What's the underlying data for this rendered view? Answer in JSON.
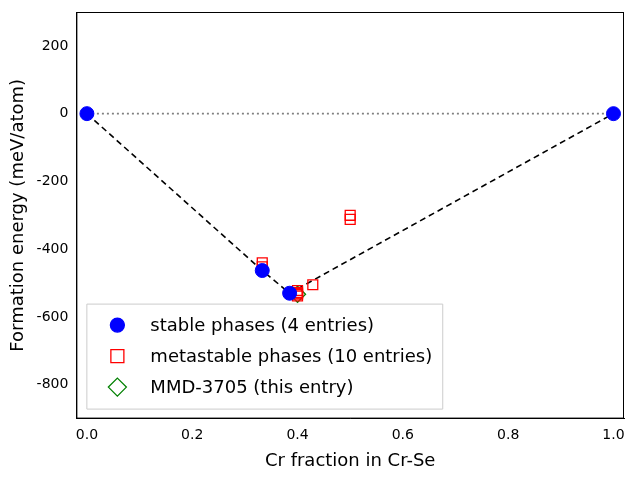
{
  "chart_data": {
    "type": "scatter",
    "x_label": "Cr fraction in Cr-Se",
    "y_label": "Formation energy (meV/atom)",
    "xlim": [
      -0.02,
      1.02
    ],
    "xticks": [
      {
        "value": 0,
        "label": "0.0"
      },
      {
        "value": 0.2,
        "label": "0.2"
      },
      {
        "value": 0.4,
        "label": "0.4"
      },
      {
        "value": 0.6,
        "label": "0.6"
      },
      {
        "value": 0.8,
        "label": "0.8"
      },
      {
        "value": 1,
        "label": "1.0"
      }
    ],
    "ylim": [
      -900,
      300
    ],
    "yticks": [
      -800,
      -600,
      -400,
      -200,
      0,
      200
    ],
    "grid": false,
    "legend": "lower left",
    "series": [
      {
        "name": "stable phases (4 entries)",
        "type": "scatter",
        "color": "#0000ff",
        "marker": "circle",
        "x": [
          0,
          0.333,
          0.385,
          1
        ],
        "values": [
          0,
          -463,
          -530,
          0
        ]
      },
      {
        "name": "metastable phases (10 entries)",
        "type": "scatter",
        "color": "#ff0000",
        "marker": "open_square",
        "x": [
          0.333,
          0.333,
          0.4,
          0.4,
          0.4,
          0.4,
          0.4,
          0.429,
          0.5,
          0.5
        ],
        "values": [
          -440,
          -452,
          -522,
          -528,
          -530,
          -533,
          -538,
          -505,
          -300,
          -312
        ]
      },
      {
        "name": "MMD-3705 (this entry)",
        "type": "scatter",
        "color": "#008000",
        "marker": "open_diamond",
        "x": [
          0.4
        ],
        "values": [
          -533
        ]
      },
      {
        "type": "line",
        "color": "#000000",
        "line_style": "dashed",
        "x": [
          0,
          0.333,
          0.385,
          1
        ],
        "values": [
          0,
          -463,
          -530,
          0
        ]
      },
      {
        "type": "line",
        "color": "#808080",
        "line_style": "dotted",
        "x": [
          0,
          1
        ],
        "values": [
          0,
          0
        ]
      }
    ]
  }
}
